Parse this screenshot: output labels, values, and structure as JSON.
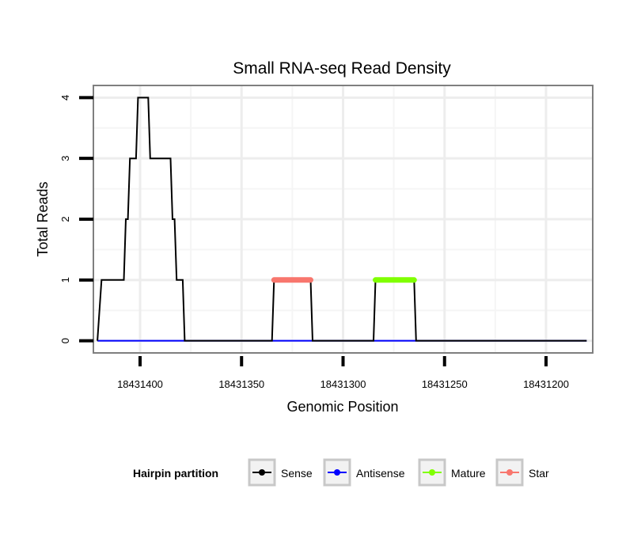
{
  "chart_data": {
    "type": "line",
    "title": "Small RNA-seq Read Density",
    "xlabel": "Genomic Position",
    "ylabel": "Total Reads",
    "xlim": [
      18431423,
      18431177
    ],
    "x_reversed": true,
    "ylim": [
      -0.2,
      4.2
    ],
    "x_ticks": [
      18431400,
      18431350,
      18431300,
      18431250,
      18431200
    ],
    "y_ticks": [
      0,
      1,
      2,
      3,
      4
    ],
    "grid": true,
    "legend_title": "Hairpin partition",
    "legend_position": "bottom",
    "series": [
      {
        "name": "Sense",
        "color": "#000000",
        "points": [
          [
            18431421,
            0
          ],
          [
            18431419,
            1
          ],
          [
            18431408,
            1
          ],
          [
            18431407,
            2
          ],
          [
            18431406,
            2
          ],
          [
            18431405,
            3
          ],
          [
            18431402,
            3
          ],
          [
            18431401,
            4
          ],
          [
            18431396,
            4
          ],
          [
            18431395,
            3
          ],
          [
            18431385,
            3
          ],
          [
            18431384,
            2
          ],
          [
            18431383,
            2
          ],
          [
            18431382,
            1
          ],
          [
            18431379,
            1
          ],
          [
            18431378,
            0
          ],
          [
            18431335,
            0
          ],
          [
            18431334,
            1
          ],
          [
            18431316,
            1
          ],
          [
            18431315,
            0
          ],
          [
            18431285,
            0
          ],
          [
            18431284,
            1
          ],
          [
            18431265,
            1
          ],
          [
            18431264,
            0
          ],
          [
            18431180,
            0
          ]
        ]
      },
      {
        "name": "Antisense",
        "color": "#0000ff",
        "points": [
          [
            18431421,
            0
          ],
          [
            18431180,
            0
          ]
        ]
      },
      {
        "name": "Mature",
        "color": "#80ff00",
        "points": [
          [
            18431284,
            1
          ],
          [
            18431265,
            1
          ]
        ]
      },
      {
        "name": "Star",
        "color": "#f8766d",
        "points": [
          [
            18431334,
            1
          ],
          [
            18431316,
            1
          ]
        ]
      }
    ]
  }
}
